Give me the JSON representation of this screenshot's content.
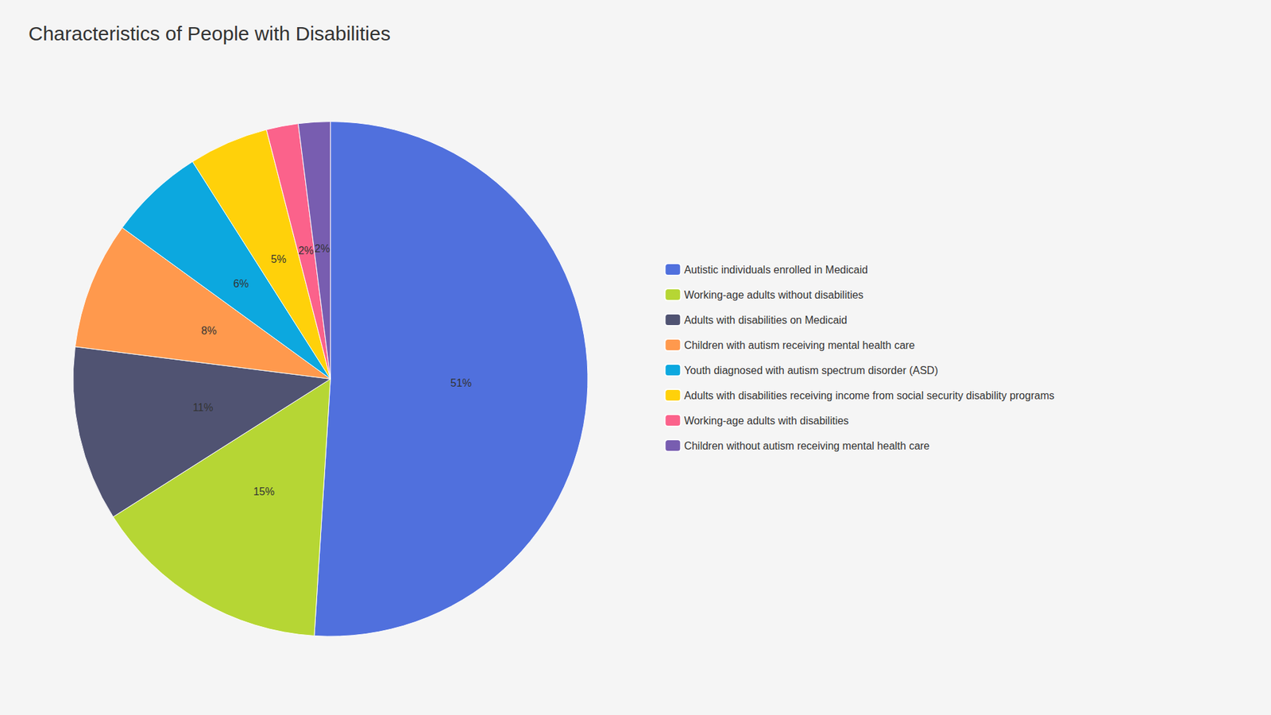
{
  "chart_data": {
    "type": "pie",
    "title": "Characteristics of People with Disabilities",
    "categories": [
      "Autistic individuals enrolled in Medicaid",
      "Working-age adults without disabilities",
      "Adults with disabilities on Medicaid",
      "Children with autism receiving mental health care",
      "Youth diagnosed with autism spectrum disorder (ASD)",
      "Adults with disabilities receiving income from social security disability programs",
      "Working-age adults with disabilities",
      "Children without autism receiving mental health care"
    ],
    "values": [
      51,
      15,
      11,
      8,
      6,
      5,
      2,
      2
    ],
    "value_labels": [
      "51%",
      "15%",
      "11%",
      "8%",
      "6%",
      "5%",
      "2%",
      "2%"
    ],
    "data_labels": true,
    "legend": "right"
  }
}
